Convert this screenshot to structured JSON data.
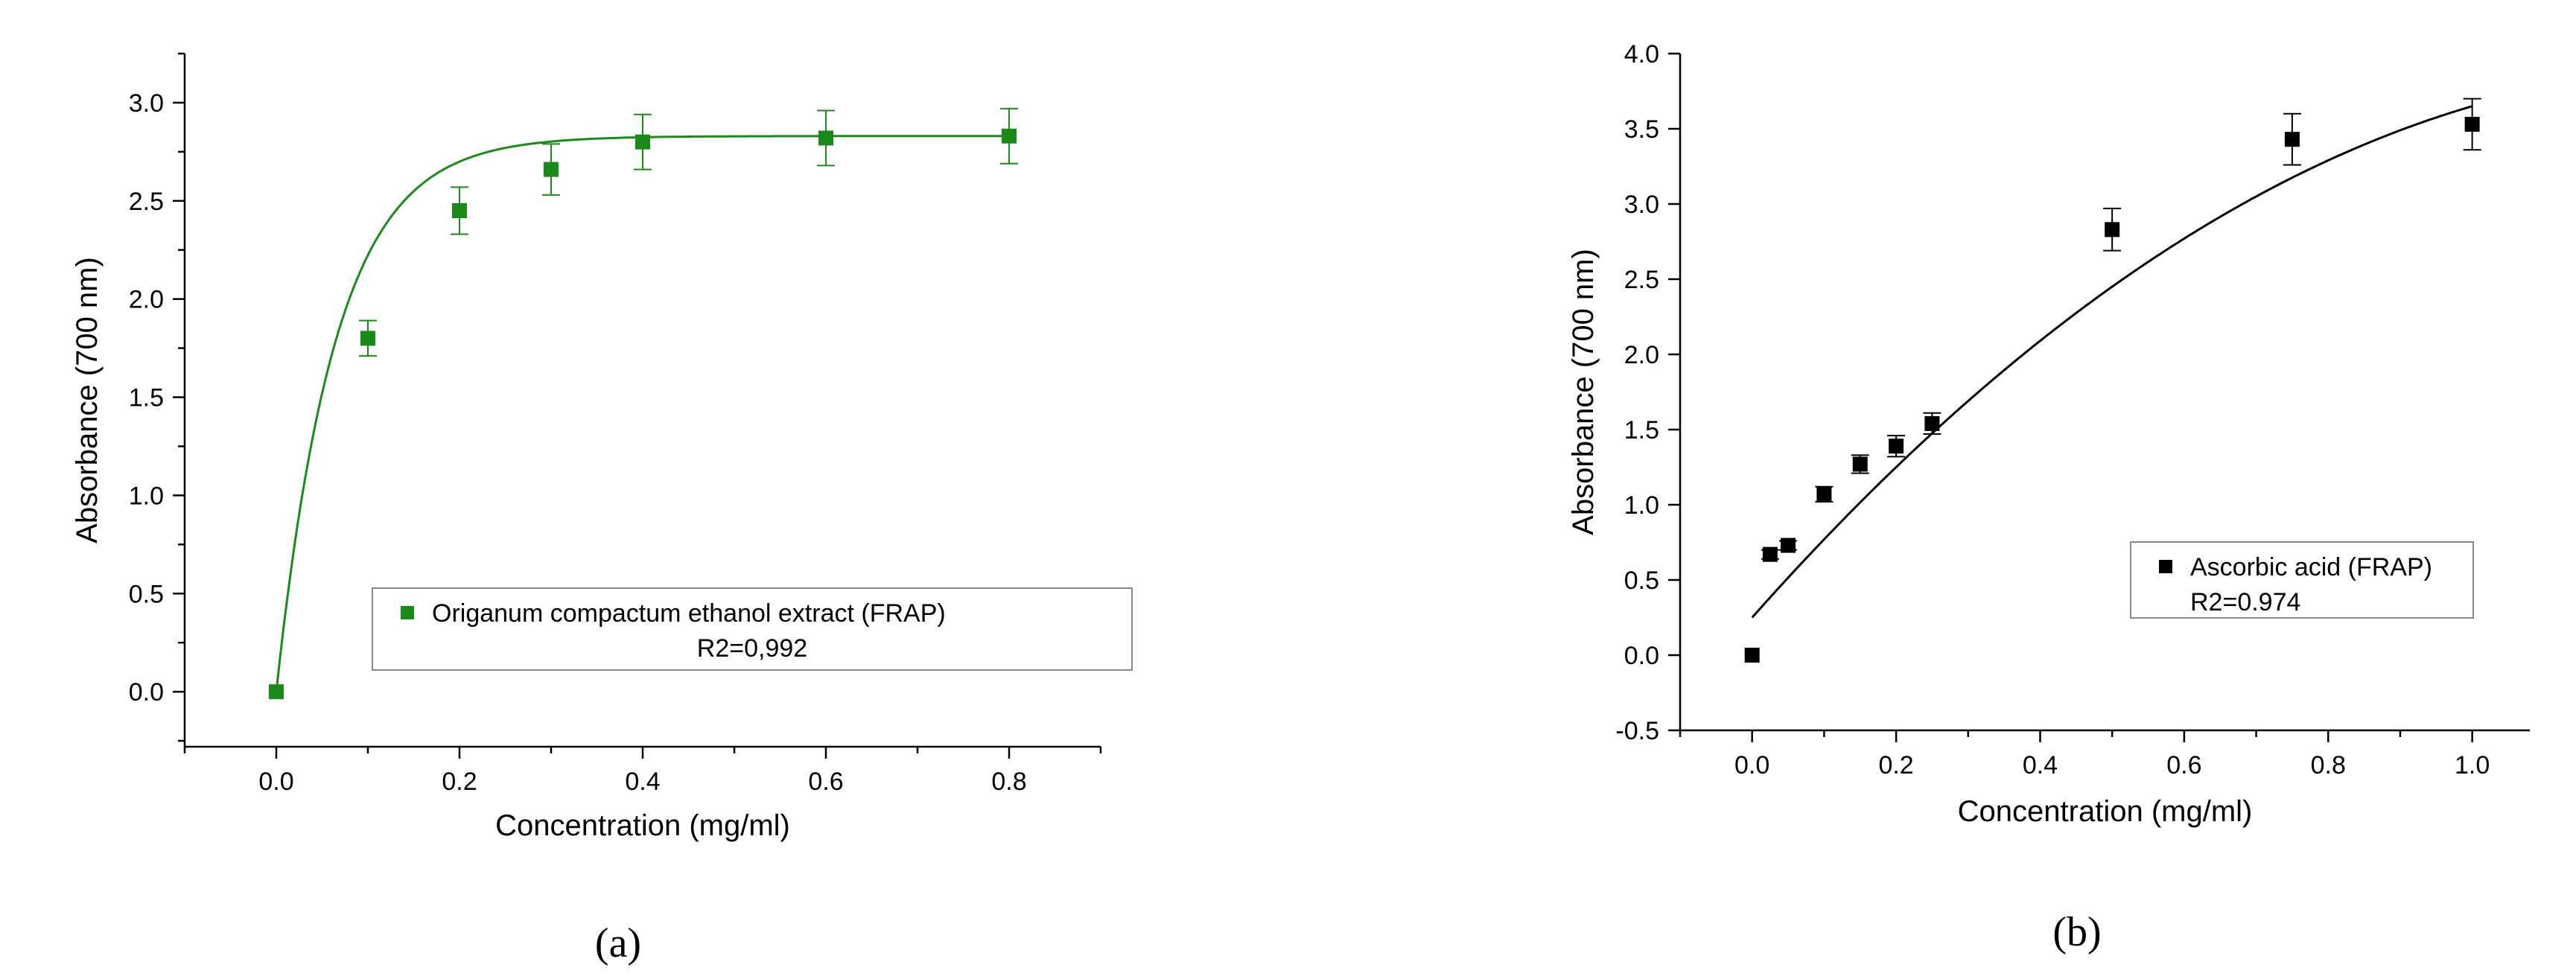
{
  "chart_data": [
    {
      "type": "scatter",
      "panel_label": "(a)",
      "xlabel": "Concentration (mg/ml)",
      "ylabel": "Absorbance (700 nm)",
      "xlim": [
        -0.1,
        0.9
      ],
      "ylim": [
        -0.28,
        3.25
      ],
      "x_ticks": [
        0.0,
        0.2,
        0.4,
        0.6,
        0.8
      ],
      "x_tick_labels": [
        "0.0",
        "0.2",
        "0.4",
        "0.6",
        "0.8"
      ],
      "y_ticks": [
        0.0,
        0.5,
        1.0,
        1.5,
        2.0,
        2.5,
        3.0
      ],
      "y_tick_labels": [
        "0.0",
        "0.5",
        "1.0",
        "1.5",
        "2.0",
        "2.5",
        "3.0"
      ],
      "grid": false,
      "legend_position": "lower-right",
      "series": [
        {
          "name": "Origanum compactum ethanol extract (FRAP)",
          "fit_label": "R2=0,992",
          "color": "#1a8a1a",
          "marker": "square",
          "x": [
            0.0,
            0.1,
            0.2,
            0.3,
            0.4,
            0.6,
            0.8
          ],
          "y": [
            0.0,
            1.8,
            2.45,
            2.66,
            2.8,
            2.82,
            2.83
          ],
          "error": [
            0.0,
            0.09,
            0.12,
            0.13,
            0.14,
            0.14,
            0.14
          ],
          "fit": {
            "model": "exponential-rise",
            "a": 2.83,
            "k": 15.4
          }
        }
      ]
    },
    {
      "type": "scatter",
      "panel_label": "(b)",
      "xlabel": "Concentration (mg/ml)",
      "ylabel": "Absorbance (700 nm)",
      "xlim": [
        -0.1,
        1.08
      ],
      "ylim": [
        -0.5,
        4.0
      ],
      "x_ticks": [
        0.0,
        0.2,
        0.4,
        0.6,
        0.8,
        1.0
      ],
      "x_tick_labels": [
        "0.0",
        "0.2",
        "0.4",
        "0.6",
        "0.8",
        "1.0"
      ],
      "y_ticks": [
        -0.5,
        0.0,
        0.5,
        1.0,
        1.5,
        2.0,
        2.5,
        3.0,
        3.5,
        4.0
      ],
      "y_tick_labels": [
        "-0.5",
        "0.0",
        "0.5",
        "1.0",
        "1.5",
        "2.0",
        "2.5",
        "3.0",
        "3.5",
        "4.0"
      ],
      "grid": false,
      "legend_position": "center-right",
      "series": [
        {
          "name": "Ascorbic acid (FRAP)",
          "fit_label": "R2=0.974",
          "color": "#000000",
          "marker": "square",
          "x": [
            0.0,
            0.025,
            0.05,
            0.1,
            0.15,
            0.2,
            0.25,
            0.5,
            0.75,
            1.0
          ],
          "y": [
            0.0,
            0.67,
            0.73,
            1.07,
            1.27,
            1.39,
            1.54,
            2.83,
            3.43,
            3.53
          ],
          "error": [
            0.0,
            0.03,
            0.03,
            0.05,
            0.06,
            0.07,
            0.07,
            0.14,
            0.17,
            0.17
          ],
          "fit": {
            "model": "quadratic",
            "c": 0.25,
            "b": 5.4,
            "a": -2.0
          }
        }
      ]
    }
  ]
}
